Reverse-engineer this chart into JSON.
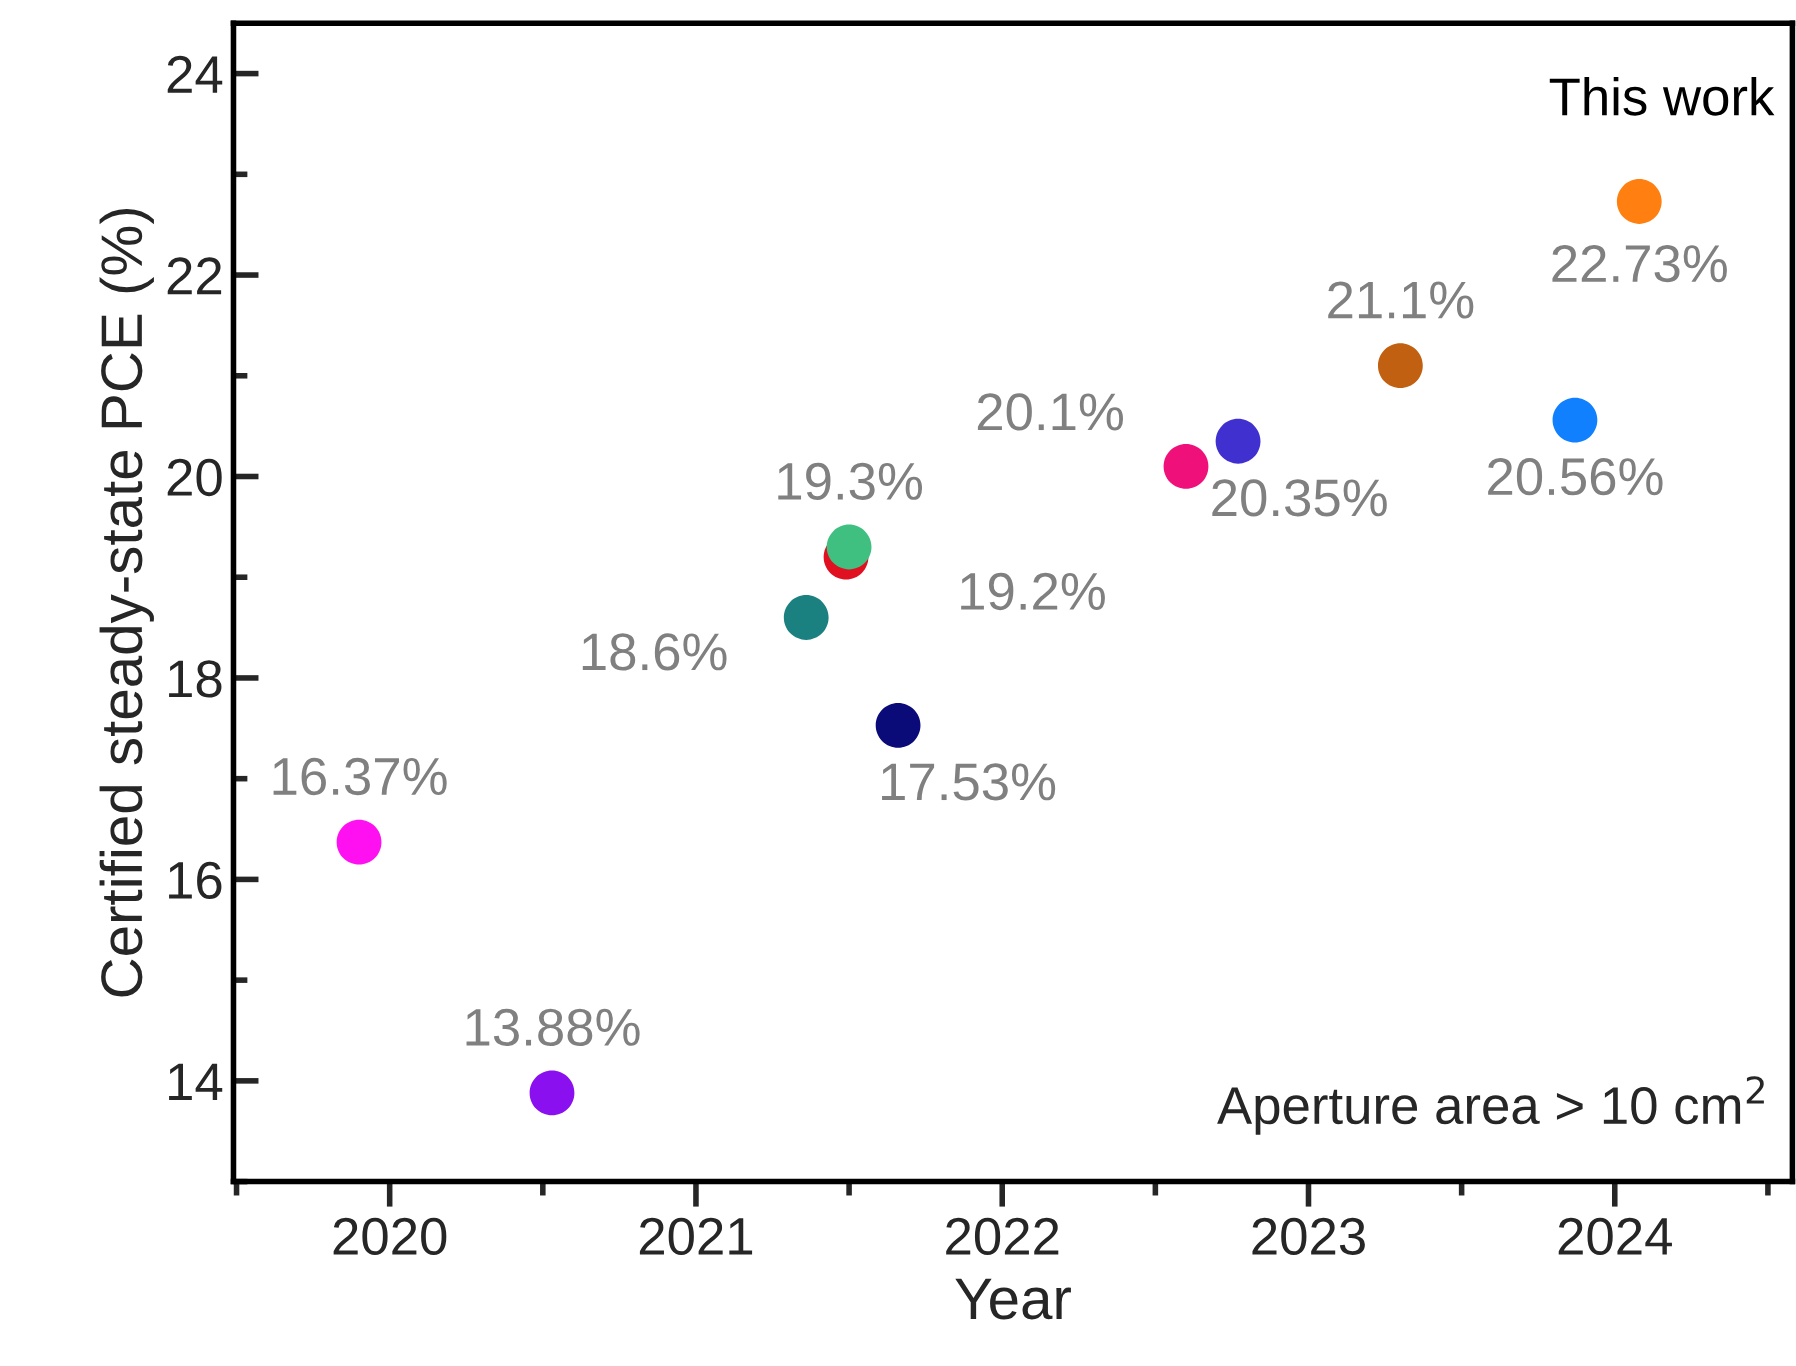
{
  "chart_data": {
    "type": "scatter",
    "xlabel": "Year",
    "ylabel": "Certified steady-state PCE (%)",
    "x": [
      2019.9,
      2020.53,
      2021.36,
      2021.49,
      2021.5,
      2021.66,
      2022.6,
      2022.77,
      2023.3,
      2023.87,
      2024.08
    ],
    "values": [
      16.37,
      13.88,
      18.6,
      19.2,
      19.3,
      17.53,
      20.1,
      20.35,
      21.1,
      20.56,
      22.73
    ],
    "colors": [
      "#ff10f0",
      "#8a10f0",
      "#1a8080",
      "#e01020",
      "#40c080",
      "#0a0a78",
      "#f0107a",
      "#4030d0",
      "#c06010",
      "#1080ff",
      "#ff8010"
    ],
    "value_labels": [
      "16.37%",
      "13.88%",
      "18.6%",
      "19.2%",
      "19.3%",
      "17.53%",
      "20.1%",
      "20.35%",
      "21.1%",
      "20.56%",
      "22.73%"
    ],
    "marker": "circle",
    "xlim": [
      2019.49,
      2024.58
    ],
    "xticks": [
      2020,
      2021,
      2022,
      2023,
      2024
    ],
    "ylim": [
      13,
      24.5
    ],
    "yticks": [
      14,
      16,
      18,
      20,
      22,
      24
    ],
    "grid": false,
    "legend": false,
    "annotations": [
      {
        "text": "This work",
        "x": 2024.08,
        "y": 22.73
      },
      "Aperture area > 10 cm$^{2}$"
    ]
  }
}
